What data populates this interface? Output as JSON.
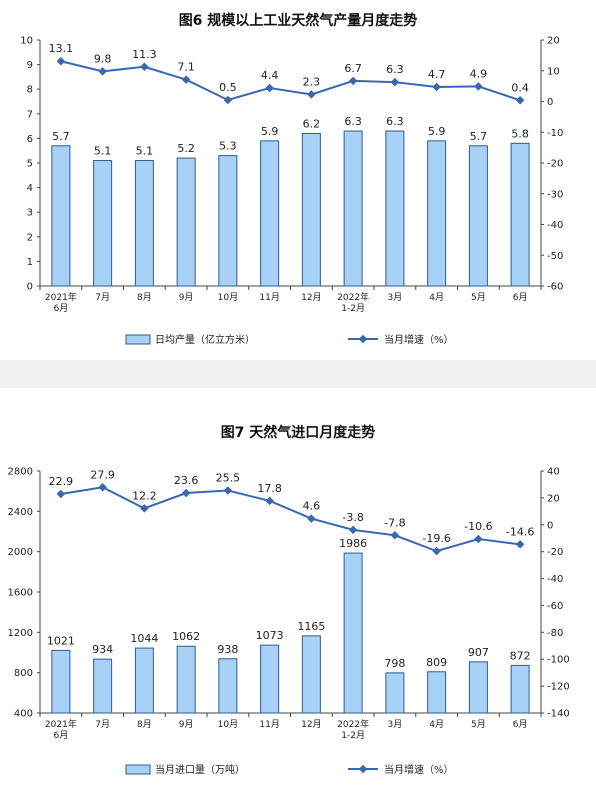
{
  "chart_data": [
    {
      "type": "bar",
      "title": "图6  规模以上工业天然气产量月度走势",
      "categories": [
        "2021年\n6月",
        "7月",
        "8月",
        "9月",
        "10月",
        "11月",
        "12月",
        "2022年\n1-2月",
        "3月",
        "4月",
        "5月",
        "6月"
      ],
      "series": [
        {
          "name": "日均产量（亿立方米）",
          "type": "bar",
          "axis": "left",
          "values": [
            5.7,
            5.1,
            5.1,
            5.2,
            5.3,
            5.9,
            6.2,
            6.3,
            6.3,
            5.9,
            5.7,
            5.8
          ]
        },
        {
          "name": "当月增速（%）",
          "type": "line",
          "axis": "right",
          "values": [
            13.1,
            9.8,
            11.3,
            7.1,
            0.5,
            4.4,
            2.3,
            6.7,
            6.3,
            4.7,
            4.9,
            0.4
          ]
        }
      ],
      "ylim_left": [
        0,
        10
      ],
      "yticks_left": [
        0,
        1,
        2,
        3,
        4,
        5,
        6,
        7,
        8,
        9,
        10
      ],
      "ylim_right": [
        -60,
        20
      ],
      "yticks_right": [
        -60,
        -50,
        -40,
        -30,
        -20,
        -10,
        0,
        10,
        20
      ],
      "grid": false,
      "legend": "bottom",
      "colors": {
        "bar": "#a8d1f7",
        "bar_edge": "#2e5c8e",
        "line": "#3a68b0"
      }
    },
    {
      "type": "bar",
      "title": "图7  天然气进口月度走势",
      "categories": [
        "2021年\n6月",
        "7月",
        "8月",
        "9月",
        "10月",
        "11月",
        "12月",
        "2022年\n1-2月",
        "3月",
        "4月",
        "5月",
        "6月"
      ],
      "series": [
        {
          "name": "当月进口量（万吨）",
          "type": "bar",
          "axis": "left",
          "values": [
            1021,
            934,
            1044,
            1062,
            938,
            1073,
            1165,
            1986,
            798,
            809,
            907,
            872
          ]
        },
        {
          "name": "当月增速（%）",
          "type": "line",
          "axis": "right",
          "values": [
            22.9,
            27.9,
            12.2,
            23.6,
            25.5,
            17.8,
            4.6,
            -3.8,
            -7.8,
            -19.6,
            -10.6,
            -14.6
          ]
        }
      ],
      "ylim_left": [
        400,
        2800
      ],
      "yticks_left": [
        400,
        800,
        1200,
        1600,
        2000,
        2400,
        2800
      ],
      "ylim_right": [
        -140,
        40
      ],
      "yticks_right": [
        -140,
        -120,
        -100,
        -80,
        -60,
        -40,
        -20,
        0,
        20,
        40
      ],
      "grid": false,
      "legend": "bottom",
      "colors": {
        "bar": "#a8d1f7",
        "bar_edge": "#2e5c8e",
        "line": "#3a68b0"
      }
    }
  ]
}
